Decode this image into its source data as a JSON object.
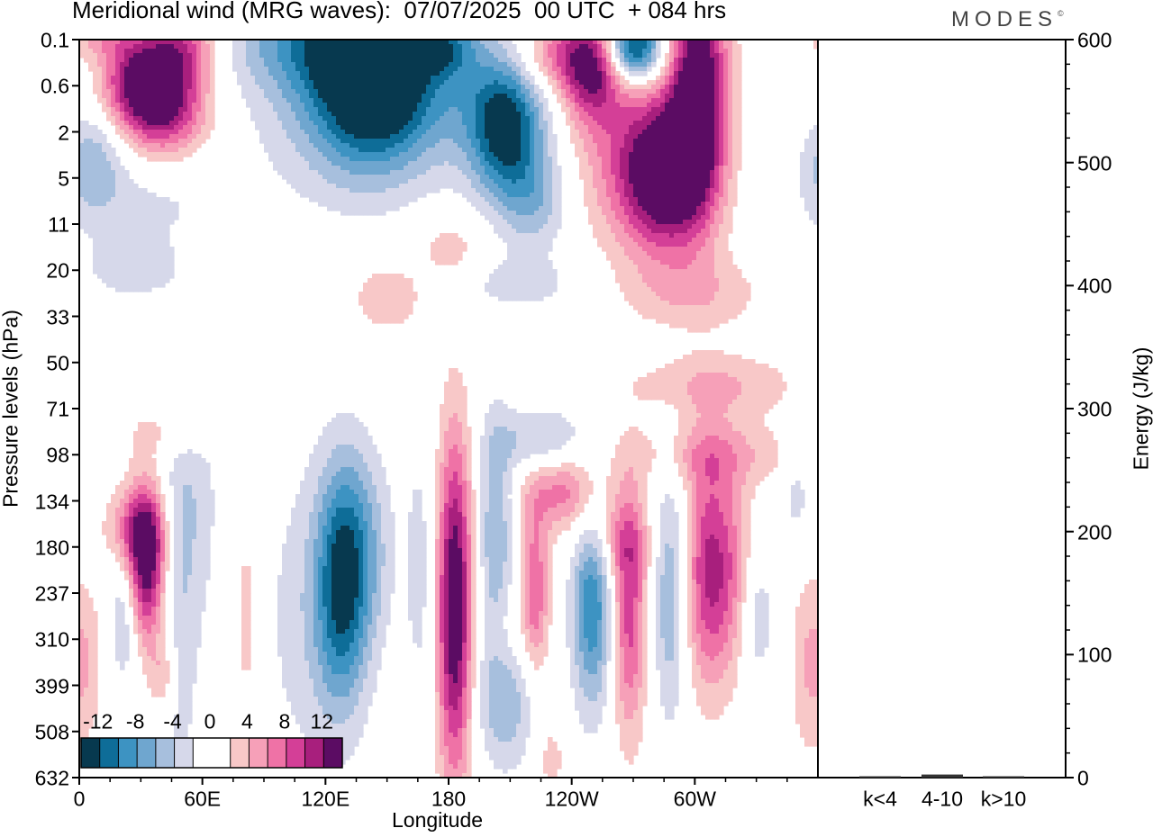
{
  "title": "Meridional wind (MRG waves):  07/07/2025  00 UTC  + 084 hrs",
  "brand": "MODES",
  "brand_mark": "©",
  "colors": {
    "neg": [
      "#07394f",
      "#0e6d98",
      "#3d93c2",
      "#6fa6cf",
      "#a7bfdd",
      "#d6d8ea"
    ],
    "neg_mid": "#ffffff",
    "pos": [
      "#f8c8c8",
      "#f6a0b8",
      "#ef72a6",
      "#d43f97",
      "#a81f7d",
      "#5b0c63"
    ]
  },
  "chart_data": {
    "type": "heatmap",
    "title": "Meridional wind (MRG waves):  07/07/2025  00 UTC  + 084 hrs",
    "xlabel": "Longitude",
    "ylabel": "Pressure levels (hPa)",
    "x_ticks": [
      "0",
      "60E",
      "120E",
      "180",
      "120W",
      "60W"
    ],
    "y_ticks": [
      "0.1",
      "0.6",
      "2",
      "5",
      "11",
      "20",
      "33",
      "50",
      "71",
      "98",
      "134",
      "180",
      "237",
      "310",
      "399",
      "508",
      "632"
    ],
    "colorbar": {
      "labels": [
        "-12",
        "-8",
        "-4",
        "0",
        "4",
        "8",
        "12"
      ],
      "levels": [
        -14,
        -12,
        -10,
        -8,
        -6,
        -4,
        -2,
        2,
        4,
        6,
        8,
        10,
        12,
        14
      ]
    },
    "blobs": [
      {
        "lon": 42,
        "lev": 1.3,
        "dlon": 14,
        "dlev": 0.8,
        "v": 13
      },
      {
        "lon": 27,
        "lev": 0.9,
        "dlon": 12,
        "dlev": 0.7,
        "v": 9
      },
      {
        "lon": 50,
        "lev": 0.1,
        "dlon": 12,
        "dlev": 0.5,
        "v": 7
      },
      {
        "lon": 12,
        "lev": 0.0,
        "dlon": 12,
        "dlev": 0.3,
        "v": 4
      },
      {
        "lon": 7,
        "lev": 2.6,
        "dlon": 10,
        "dlev": 0.8,
        "v": -5
      },
      {
        "lon": 30,
        "lev": 3.5,
        "dlon": 28,
        "dlev": 0.7,
        "v": -2.5
      },
      {
        "lon": 113,
        "lev": 0.0,
        "dlon": 28,
        "dlev": 0.8,
        "v": -7
      },
      {
        "lon": 145,
        "lev": 0.7,
        "dlon": 20,
        "dlev": 1.3,
        "v": -15
      },
      {
        "lon": 130,
        "lev": 1.5,
        "dlon": 30,
        "dlev": 1.4,
        "v": -5
      },
      {
        "lon": 158,
        "lev": 0.0,
        "dlon": 10,
        "dlev": 0.3,
        "v": 3
      },
      {
        "lon": 178,
        "lev": 0.2,
        "dlon": 10,
        "dlev": 0.4,
        "v": -6
      },
      {
        "lon": 208,
        "lev": 2.0,
        "dlon": 12,
        "dlev": 1.0,
        "v": -11
      },
      {
        "lon": 198,
        "lev": 1.0,
        "dlon": 22,
        "dlev": 1.3,
        "v": -5
      },
      {
        "lon": 222,
        "lev": 3.5,
        "dlon": 12,
        "dlev": 0.8,
        "v": -5
      },
      {
        "lon": 238,
        "lev": 0.3,
        "dlon": 20,
        "dlev": 0.6,
        "v": 8
      },
      {
        "lon": 250,
        "lev": 0.8,
        "dlon": 10,
        "dlev": 0.8,
        "v": 9
      },
      {
        "lon": 270,
        "lev": 0.2,
        "dlon": 10,
        "dlev": 0.5,
        "v": -16
      },
      {
        "lon": 286,
        "lev": 3.0,
        "dlon": 14,
        "dlev": 1.1,
        "v": 12
      },
      {
        "lon": 302,
        "lev": 1.0,
        "dlon": 10,
        "dlev": 1.8,
        "v": 15
      },
      {
        "lon": 272,
        "lev": 2.6,
        "dlon": 20,
        "dlev": 1.3,
        "v": 7
      },
      {
        "lon": 180,
        "lev": 4.5,
        "dlon": 12,
        "dlev": 0.5,
        "v": 3
      },
      {
        "lon": 150,
        "lev": 5.6,
        "dlon": 12,
        "dlev": 0.5,
        "v": 4
      },
      {
        "lon": 25,
        "lev": 5.0,
        "dlon": 18,
        "dlev": 0.5,
        "v": -3
      },
      {
        "lon": 300,
        "lev": 5.5,
        "dlon": 25,
        "dlev": 0.6,
        "v": 3.5
      },
      {
        "lon": 215,
        "lev": 5.3,
        "dlon": 20,
        "dlev": 0.4,
        "v": -3
      },
      {
        "lon": 310,
        "lev": 7.5,
        "dlon": 30,
        "dlev": 0.5,
        "v": 4
      },
      {
        "lon": 310,
        "lev": 9.0,
        "dlon": 30,
        "dlev": 0.5,
        "v": 4
      },
      {
        "lon": 225,
        "lev": 8.7,
        "dlon": 15,
        "dlev": 0.5,
        "v": -5
      },
      {
        "lon": 45,
        "lev": 8.5,
        "dlon": 15,
        "dlev": 0.4,
        "v": 3
      },
      {
        "lon": 33,
        "lev": 11.4,
        "dlon": 7,
        "dlev": 1.2,
        "v": 14
      },
      {
        "lon": 27,
        "lev": 10.6,
        "dlon": 10,
        "dlev": 0.6,
        "v": 6
      },
      {
        "lon": 41,
        "lev": 13.8,
        "dlon": 5,
        "dlev": 0.6,
        "v": 5
      },
      {
        "lon": 22,
        "lev": 12.5,
        "dlon": 5,
        "dlev": 1.0,
        "v": -5
      },
      {
        "lon": 47,
        "lev": 12.2,
        "dlon": 8,
        "dlev": 3.2,
        "v": -4
      },
      {
        "lon": 58,
        "lev": 10.0,
        "dlon": 8,
        "dlev": 1.8,
        "v": -2.5
      },
      {
        "lon": 82,
        "lev": 12.5,
        "dlon": 6,
        "dlev": 2.5,
        "v": 3
      },
      {
        "lon": 128,
        "lev": 11.8,
        "dlon": 9,
        "dlev": 1.8,
        "v": -11
      },
      {
        "lon": 112,
        "lev": 12.5,
        "dlon": 18,
        "dlev": 2.5,
        "v": -3
      },
      {
        "lon": 140,
        "lev": 11.0,
        "dlon": 10,
        "dlev": 1.5,
        "v": -4
      },
      {
        "lon": 183,
        "lev": 12.3,
        "dlon": 6,
        "dlev": 2.6,
        "v": 15
      },
      {
        "lon": 166,
        "lev": 11.5,
        "dlon": 5,
        "dlev": 2.0,
        "v": -3
      },
      {
        "lon": 203,
        "lev": 10.7,
        "dlon": 6,
        "dlev": 1.8,
        "v": -6
      },
      {
        "lon": 208,
        "lev": 14.2,
        "dlon": 10,
        "dlev": 1.1,
        "v": -6
      },
      {
        "lon": 222,
        "lev": 12.0,
        "dlon": 5,
        "dlev": 1.3,
        "v": 8
      },
      {
        "lon": 208,
        "lev": 13.0,
        "dlon": 6,
        "dlev": 0.8,
        "v": 3
      },
      {
        "lon": 237,
        "lev": 9.8,
        "dlon": 14,
        "dlev": 0.6,
        "v": 7
      },
      {
        "lon": 250,
        "lev": 12.2,
        "dlon": 7,
        "dlev": 1.6,
        "v": -10
      },
      {
        "lon": 268,
        "lev": 12.4,
        "dlon": 6,
        "dlev": 1.9,
        "v": 9
      },
      {
        "lon": 262,
        "lev": 10.9,
        "dlon": 12,
        "dlev": 0.6,
        "v": 4
      },
      {
        "lon": 288,
        "lev": 12.0,
        "dlon": 6,
        "dlev": 1.9,
        "v": -6
      },
      {
        "lon": 306,
        "lev": 11.5,
        "dlon": 8,
        "dlev": 1.8,
        "v": 9
      },
      {
        "lon": 318,
        "lev": 11.5,
        "dlon": 8,
        "dlev": 1.6,
        "v": 5
      },
      {
        "lon": 330,
        "lev": 12.5,
        "dlon": 6,
        "dlev": 1.0,
        "v": -4
      },
      {
        "lon": 350,
        "lev": 9.7,
        "dlon": 5,
        "dlev": 1.0,
        "v": -3
      },
      {
        "lon": 355,
        "lev": 13.5,
        "dlon": 6,
        "dlev": 1.5,
        "v": 4
      },
      {
        "lon": 5,
        "lev": 13.5,
        "dlon": 5,
        "dlev": 1.2,
        "v": 3
      },
      {
        "lon": 38,
        "lev": 15.8,
        "dlon": 5,
        "dlev": 0.6,
        "v": 3
      },
      {
        "lon": 230,
        "lev": 15.6,
        "dlon": 5,
        "dlev": 0.6,
        "v": 3
      }
    ],
    "energy_panel": {
      "ylabel": "Energy (J/kg)",
      "y_ticks": [
        "0",
        "100",
        "200",
        "300",
        "400",
        "500",
        "600"
      ],
      "ylim": [
        0,
        600
      ],
      "categories": [
        "k<4",
        "4-10",
        "k>10"
      ],
      "values": [
        0.5,
        2.5,
        0.3
      ]
    }
  }
}
